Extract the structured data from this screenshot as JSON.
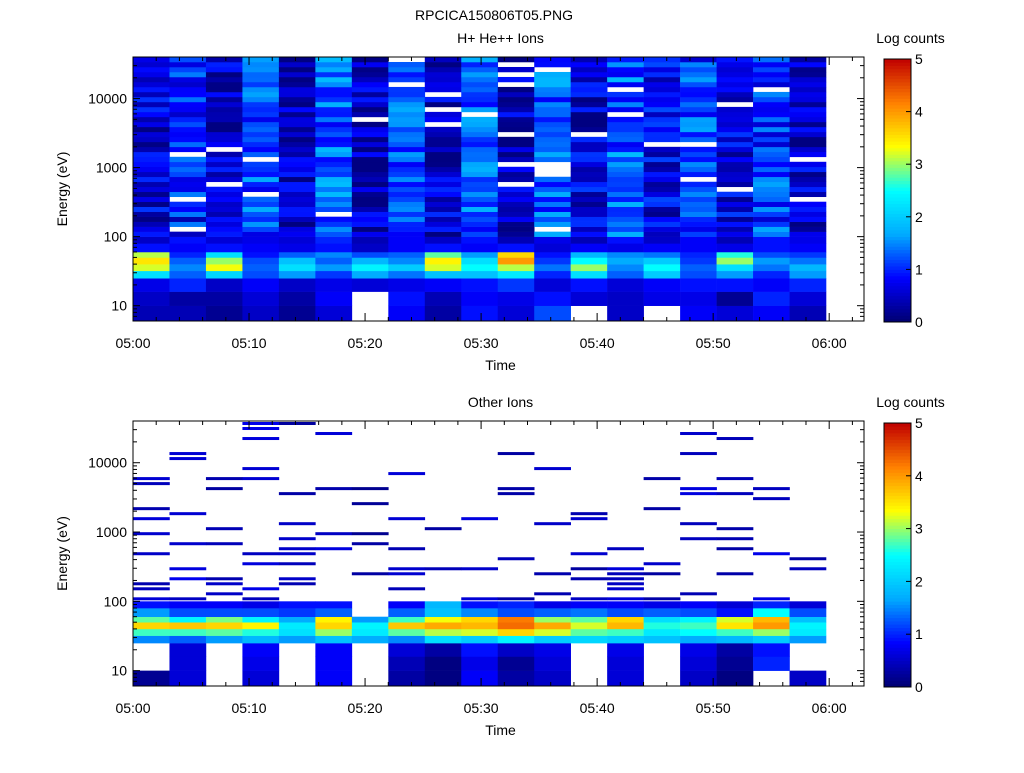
{
  "title": "RPCICA150806T05.PNG",
  "colorscale": {
    "stops": [
      "#000070",
      "#0000ff",
      "#00aaff",
      "#00ffff",
      "#ffff00",
      "#ff8000",
      "#c00000"
    ],
    "missing_color": "#ffffff"
  },
  "chart_data": [
    {
      "type": "heatmap",
      "title": "H+ He++ Ions",
      "xlabel": "Time",
      "ylabel": "Energy (eV)",
      "xticks": [
        "05:00",
        "05:10",
        "05:20",
        "05:30",
        "05:40",
        "05:50",
        "06:00"
      ],
      "xlim_minutes": [
        0,
        63
      ],
      "yscale": "log",
      "ylim": [
        6,
        40000
      ],
      "yticks": [
        "10",
        "100",
        "1000",
        "10000"
      ],
      "grid": false,
      "colorbar": {
        "label": "Log counts",
        "range": [
          0,
          5
        ],
        "ticks": [
          "0",
          "1",
          "2",
          "3",
          "4",
          "5"
        ]
      },
      "time_bins": [
        "05:00",
        "05:03",
        "05:06",
        "05:10",
        "05:13",
        "05:16",
        "05:19",
        "05:23",
        "05:26",
        "05:29",
        "05:32",
        "05:36",
        "05:39",
        "05:42",
        "05:45",
        "05:48",
        "05:52",
        "05:55",
        "05:58"
      ],
      "energy_bands": [
        {
          "range_eV": [
            6,
            10
          ],
          "values": [
            0.4,
            0.4,
            0.2,
            0.5,
            0.2,
            0.6,
            null,
            0.8,
            0.3,
            0.9,
            0.6,
            1.2,
            null,
            0.5,
            null,
            0.8,
            0.6,
            0.8,
            0.4
          ]
        },
        {
          "range_eV": [
            10,
            16
          ],
          "values": [
            0.5,
            0.3,
            0.3,
            0.6,
            0.3,
            0.8,
            null,
            0.9,
            0.4,
            0.8,
            0.7,
            0.9,
            0.6,
            0.5,
            0.7,
            0.7,
            0.2,
            1.0,
            0.6
          ]
        },
        {
          "range_eV": [
            16,
            25
          ],
          "values": [
            0.7,
            1.0,
            0.5,
            0.8,
            0.5,
            0.7,
            0.6,
            0.7,
            0.8,
            0.9,
            1.1,
            0.6,
            0.9,
            0.6,
            0.8,
            0.9,
            0.9,
            0.8,
            1.0
          ]
        },
        {
          "range_eV": [
            25,
            32
          ],
          "values": [
            2.2,
            1.3,
            2.1,
            1.2,
            1.6,
            1.1,
            1.7,
            1.4,
            1.9,
            1.9,
            2.3,
            1.0,
            2.2,
            1.3,
            2.0,
            1.2,
            1.6,
            1.0,
            1.6
          ]
        },
        {
          "range_eV": [
            32,
            40
          ],
          "values": [
            3.2,
            1.5,
            3.3,
            1.3,
            2.2,
            1.6,
            2.4,
            2.0,
            3.2,
            2.5,
            3.1,
            1.4,
            3.0,
            1.5,
            2.5,
            1.3,
            2.2,
            1.4,
            1.8
          ]
        },
        {
          "range_eV": [
            40,
            50
          ],
          "values": [
            3.5,
            1.3,
            3.0,
            1.2,
            1.9,
            1.3,
            1.8,
            1.5,
            3.4,
            2.2,
            4.0,
            1.1,
            2.5,
            1.7,
            2.0,
            1.1,
            3.0,
            1.6,
            1.4
          ]
        },
        {
          "range_eV": [
            50,
            60
          ],
          "values": [
            3.1,
            1.0,
            2.2,
            0.9,
            1.3,
            1.5,
            1.2,
            1.3,
            2.8,
            1.6,
            3.6,
            0.9,
            1.8,
            1.5,
            1.4,
            1.0,
            2.6,
            1.2,
            1.1
          ]
        },
        {
          "range_eV": [
            60,
            80
          ],
          "values": [
            0.9,
            0.8,
            0.9,
            0.8,
            0.7,
            0.9,
            0.5,
            0.8,
            0.9,
            0.8,
            0.9,
            0.6,
            0.8,
            0.7,
            0.8,
            0.8,
            0.7,
            0.9,
            0.8
          ]
        },
        {
          "range_eV": [
            80,
            100
          ],
          "values": [
            0.5,
            0.9,
            0.6,
            0.7,
            0.6,
            1.0,
            0.4,
            0.8,
            0.5,
            0.9,
            0.4,
            0.7,
            0.4,
            0.9,
            0.5,
            0.8,
            0.4,
            0.9,
            0.7
          ]
        },
        {
          "range_eV": [
            100,
            40000
          ],
          "pattern": "mostly 0.3-1.6 log counts with scattered empty bins",
          "values": [
            0.6,
            0.9,
            0.5,
            1.2,
            0.5,
            1.3,
            0.4,
            1.3,
            0.5,
            1.2,
            0.4,
            1.3,
            0.6,
            1.3,
            0.7,
            1.1,
            0.6,
            1.1,
            0.6
          ]
        }
      ]
    },
    {
      "type": "heatmap",
      "title": "Other Ions",
      "xlabel": "Time",
      "ylabel": "Energy (eV)",
      "xticks": [
        "05:00",
        "05:10",
        "05:20",
        "05:30",
        "05:40",
        "05:50",
        "06:00"
      ],
      "xlim_minutes": [
        0,
        63
      ],
      "yscale": "log",
      "ylim": [
        6,
        40000
      ],
      "yticks": [
        "10",
        "100",
        "1000",
        "10000"
      ],
      "grid": false,
      "colorbar": {
        "label": "Log counts",
        "range": [
          0,
          5
        ],
        "ticks": [
          "0",
          "1",
          "2",
          "3",
          "4",
          "5"
        ]
      },
      "time_bins": [
        "05:00",
        "05:03",
        "05:06",
        "05:10",
        "05:13",
        "05:16",
        "05:19",
        "05:23",
        "05:26",
        "05:29",
        "05:32",
        "05:36",
        "05:39",
        "05:42",
        "05:45",
        "05:48",
        "05:52",
        "05:55",
        "05:58"
      ],
      "energy_bands": [
        {
          "range_eV": [
            6,
            10
          ],
          "values": [
            0.2,
            0.6,
            null,
            0.6,
            null,
            0.8,
            null,
            0.3,
            0.1,
            0.8,
            0.3,
            0.5,
            null,
            0.6,
            null,
            0.5,
            0.1,
            null,
            0.5
          ]
        },
        {
          "range_eV": [
            10,
            16
          ],
          "values": [
            null,
            0.6,
            null,
            0.7,
            null,
            0.8,
            null,
            0.4,
            0.1,
            0.7,
            0.2,
            0.6,
            null,
            0.6,
            null,
            0.6,
            0.2,
            1.0,
            null
          ]
        },
        {
          "range_eV": [
            16,
            25
          ],
          "values": [
            null,
            0.6,
            null,
            0.8,
            null,
            0.8,
            null,
            0.6,
            0.3,
            0.9,
            0.5,
            0.7,
            null,
            0.7,
            null,
            0.7,
            0.3,
            0.9,
            null
          ]
        },
        {
          "range_eV": [
            25,
            32
          ],
          "values": [
            1.5,
            1.3,
            1.6,
            1.8,
            1.6,
            1.9,
            1.7,
            1.5,
            2.2,
            2.0,
            2.4,
            2.0,
            2.1,
            2.0,
            1.9,
            1.7,
            1.8,
            2.0,
            1.6
          ]
        },
        {
          "range_eV": [
            32,
            40
          ],
          "values": [
            2.7,
            2.7,
            2.8,
            2.6,
            2.2,
            3.0,
            2.3,
            2.8,
            3.1,
            3.2,
            3.6,
            3.2,
            2.8,
            2.7,
            2.3,
            2.5,
            2.7,
            3.0,
            2.3
          ]
        },
        {
          "range_eV": [
            40,
            50
          ],
          "values": [
            3.6,
            3.7,
            3.6,
            3.4,
            2.3,
            3.6,
            2.4,
            3.7,
            3.9,
            3.8,
            4.3,
            3.9,
            3.2,
            3.8,
            2.6,
            2.7,
            3.5,
            4.0,
            2.4
          ]
        },
        {
          "range_eV": [
            50,
            60
          ],
          "values": [
            2.8,
            2.4,
            2.9,
            2.4,
            1.7,
            3.4,
            1.6,
            2.7,
            3.3,
            3.6,
            4.2,
            3.0,
            2.8,
            3.6,
            2.2,
            2.4,
            3.2,
            3.8,
            1.9
          ]
        },
        {
          "range_eV": [
            60,
            80
          ],
          "values": [
            1.6,
            1.2,
            1.2,
            1.2,
            1.1,
            1.3,
            null,
            1.3,
            1.9,
            1.5,
            1.2,
            1.3,
            1.4,
            1.2,
            1.3,
            1.2,
            0.9,
            2.5,
            1.2
          ]
        },
        {
          "range_eV": [
            80,
            100
          ],
          "values": [
            0.9,
            0.8,
            0.8,
            0.7,
            0.9,
            0.9,
            null,
            0.8,
            1.8,
            0.9,
            1.0,
            0.7,
            0.8,
            0.8,
            0.7,
            0.8,
            0.6,
            1.0,
            0.6
          ]
        },
        {
          "range_eV": [
            100,
            40000
          ],
          "pattern": "sparse single-count lines (about 0.4 log counts) with many empty bins",
          "values": [
            0.5,
            0.6,
            0.4,
            0.6,
            0.4,
            0.5,
            0.3,
            0.5,
            0.4,
            0.6,
            0.4,
            0.5,
            0.4,
            0.5,
            0.4,
            0.5,
            0.4,
            0.6,
            0.4
          ]
        }
      ]
    }
  ]
}
